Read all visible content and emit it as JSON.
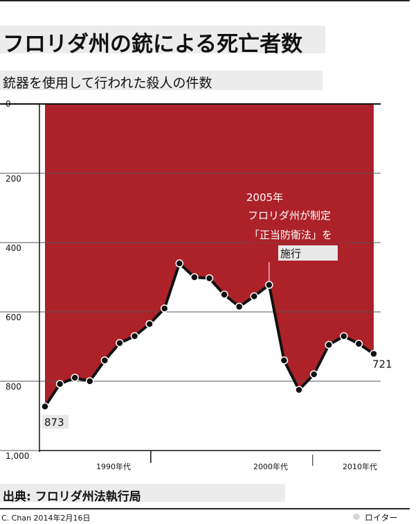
{
  "header": {
    "title": "フロリダ州の銃による死亡者数",
    "subtitle": "銃器を使用して行われた殺人の件数"
  },
  "footer": {
    "source": "出典: フロリダ州法執行局",
    "credit": "C. Chan 2014年2月16日",
    "brand": "ロイター"
  },
  "colors": {
    "fill": "#ad2129",
    "line": "#111111",
    "grid": "#555555",
    "label_bg": "#e8e8e8"
  },
  "chart_data": {
    "type": "area",
    "title": "フロリダ州の銃による死亡者数",
    "subtitle": "銃器を使用して行われた殺人の件数",
    "y_inverted": true,
    "ylim": [
      0,
      1000
    ],
    "y_ticks": [
      "0",
      "200",
      "400",
      "600",
      "800",
      "1,000"
    ],
    "x_range": [
      1990,
      2012
    ],
    "x_labels": [
      "1990年代",
      "2000年代",
      "2010年代"
    ],
    "series": [
      {
        "x": [
          1990,
          1991,
          1992,
          1993,
          1994,
          1995,
          1996,
          1997,
          1998,
          1999,
          2000,
          2001,
          2002,
          2003,
          2004,
          2005,
          2006,
          2007,
          2008,
          2009,
          2010,
          2011,
          2012
        ],
        "values": [
          873,
          808,
          790,
          800,
          740,
          690,
          670,
          635,
          590,
          460,
          500,
          503,
          550,
          585,
          555,
          522,
          740,
          825,
          780,
          695,
          670,
          692,
          721
        ]
      }
    ],
    "data_labels": {
      "first": "873",
      "last": "721"
    },
    "annotation": {
      "lines": [
        "2005年",
        "フロリダ州が制定",
        "「正当防衛法」を",
        "施行"
      ],
      "x": 2005
    }
  }
}
